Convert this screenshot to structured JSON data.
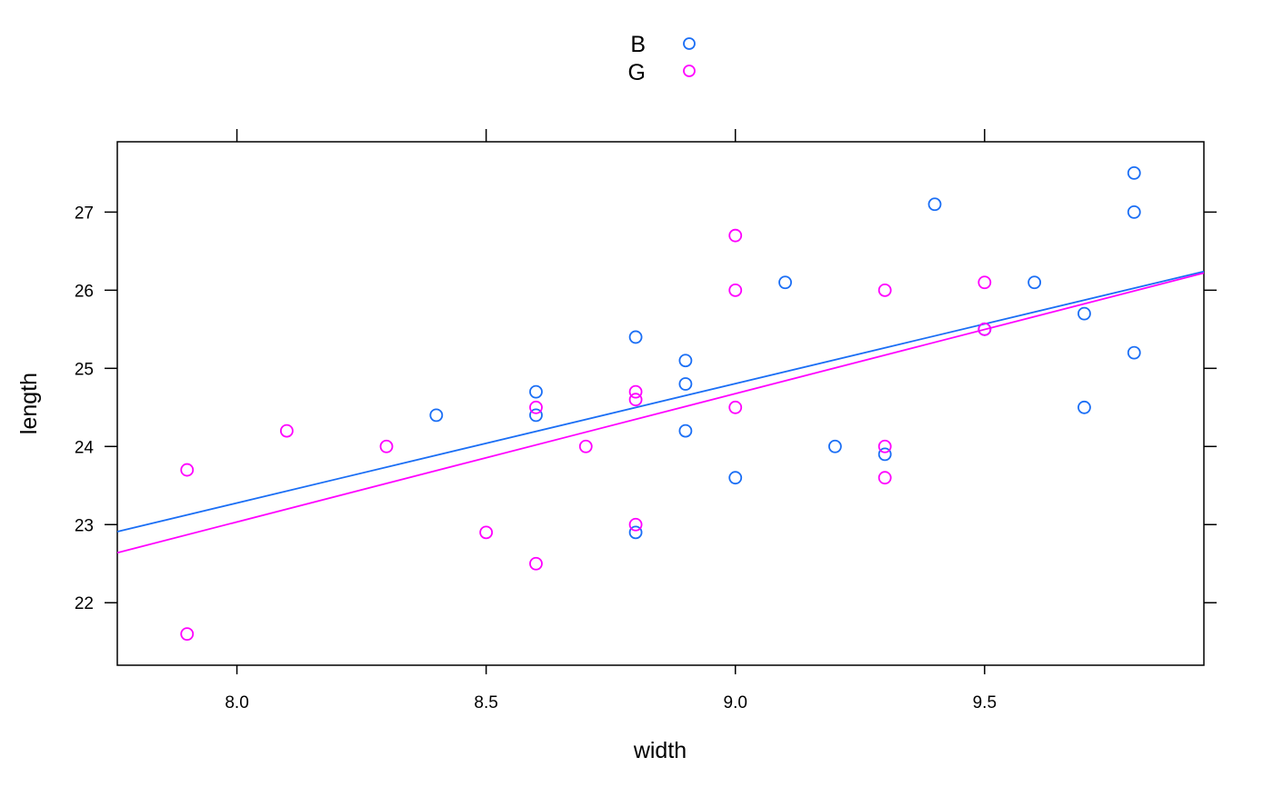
{
  "chart_data": {
    "type": "scatter",
    "xlabel": "width",
    "ylabel": "length",
    "xlim": [
      7.76,
      9.94
    ],
    "ylim": [
      21.2,
      27.9
    ],
    "x_ticks": [
      8.0,
      8.5,
      9.0,
      9.5
    ],
    "x_tick_labels": [
      "8.0",
      "8.5",
      "9.0",
      "9.5"
    ],
    "y_ticks": [
      22,
      23,
      24,
      25,
      26,
      27
    ],
    "y_tick_labels": [
      "22",
      "23",
      "24",
      "25",
      "26",
      "27"
    ],
    "grid": false,
    "legend_position": "top-center",
    "marker": "open-circle",
    "series": [
      {
        "name": "B",
        "color": "#1a6ef5",
        "points": [
          [
            8.4,
            24.4
          ],
          [
            8.6,
            24.7
          ],
          [
            8.6,
            24.4
          ],
          [
            8.8,
            25.4
          ],
          [
            8.8,
            22.9
          ],
          [
            8.9,
            25.1
          ],
          [
            8.9,
            24.8
          ],
          [
            8.9,
            24.2
          ],
          [
            9.0,
            23.6
          ],
          [
            9.1,
            26.1
          ],
          [
            9.2,
            24.0
          ],
          [
            9.3,
            23.9
          ],
          [
            9.4,
            27.1
          ],
          [
            9.5,
            25.5
          ],
          [
            9.6,
            26.1
          ],
          [
            9.7,
            25.7
          ],
          [
            9.7,
            24.5
          ],
          [
            9.8,
            27.5
          ],
          [
            9.8,
            27.0
          ],
          [
            9.8,
            25.2
          ]
        ],
        "fit_line": [
          [
            7.76,
            22.91
          ],
          [
            9.94,
            26.24
          ]
        ]
      },
      {
        "name": "G",
        "color": "#ff00ff",
        "points": [
          [
            7.9,
            23.7
          ],
          [
            7.9,
            21.6
          ],
          [
            8.1,
            24.2
          ],
          [
            8.3,
            24.0
          ],
          [
            8.5,
            22.9
          ],
          [
            8.6,
            24.5
          ],
          [
            8.6,
            22.5
          ],
          [
            8.7,
            24.0
          ],
          [
            8.8,
            24.7
          ],
          [
            8.8,
            24.6
          ],
          [
            8.8,
            23.0
          ],
          [
            9.0,
            26.7
          ],
          [
            9.0,
            26.0
          ],
          [
            9.0,
            24.5
          ],
          [
            9.3,
            26.0
          ],
          [
            9.3,
            24.0
          ],
          [
            9.3,
            23.6
          ],
          [
            9.5,
            26.1
          ],
          [
            9.5,
            25.5
          ]
        ],
        "fit_line": [
          [
            7.76,
            22.64
          ],
          [
            9.94,
            26.22
          ]
        ]
      }
    ]
  }
}
